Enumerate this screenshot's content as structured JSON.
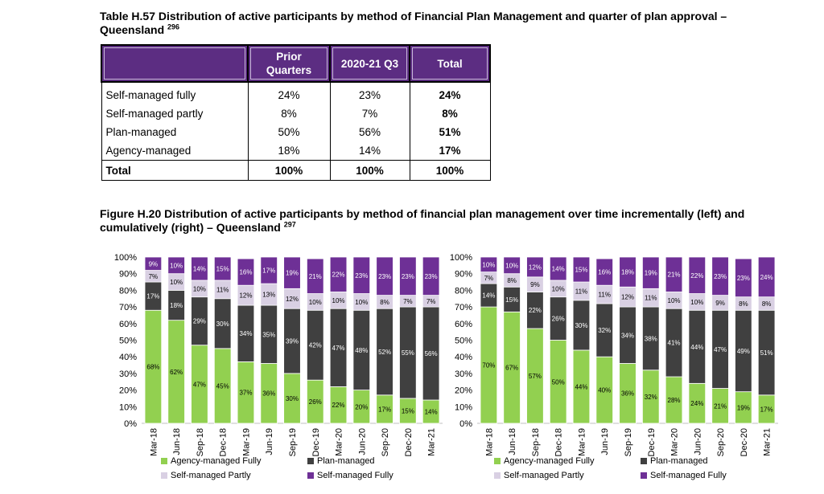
{
  "table": {
    "title": "Table H.57 Distribution of active participants by method of Financial Plan Management and quarter of plan approval – Queensland",
    "title_ref": "296",
    "columns": [
      "",
      "Prior Quarters",
      "2020-21 Q3",
      "Total"
    ],
    "rows": [
      [
        "Self-managed fully",
        "24%",
        "23%",
        "24%"
      ],
      [
        "Self-managed partly",
        "8%",
        "7%",
        "8%"
      ],
      [
        "Plan-managed",
        "50%",
        "56%",
        "51%"
      ],
      [
        "Agency-managed",
        "18%",
        "14%",
        "17%"
      ]
    ],
    "total_row": [
      "Total",
      "100%",
      "100%",
      "100%"
    ]
  },
  "figure": {
    "title": "Figure H.20 Distribution of active participants by method of financial plan management over time incrementally (left) and cumulatively (right) – Queensland",
    "title_ref": "297"
  },
  "colors": {
    "agency": "#92d050",
    "plan": "#404040",
    "partly": "#d9d0e3",
    "fully": "#6e3096",
    "header": "#5c2d82"
  },
  "chart_data": [
    {
      "type": "bar",
      "stacked": true,
      "categories": [
        "Mar-18",
        "Jun-18",
        "Sep-18",
        "Dec-18",
        "Mar-19",
        "Jun-19",
        "Sep-19",
        "Dec-19",
        "Mar-20",
        "Jun-20",
        "Sep-20",
        "Dec-20",
        "Mar-21"
      ],
      "ylim": [
        0,
        100
      ],
      "yticks": [
        "0%",
        "10%",
        "20%",
        "30%",
        "40%",
        "50%",
        "60%",
        "70%",
        "80%",
        "90%",
        "100%"
      ],
      "series": [
        {
          "name": "Agency-managed Fully",
          "values": [
            68,
            62,
            47,
            45,
            37,
            36,
            30,
            26,
            22,
            20,
            17,
            15,
            14
          ]
        },
        {
          "name": "Plan-managed",
          "values": [
            17,
            18,
            29,
            30,
            34,
            35,
            39,
            42,
            47,
            48,
            52,
            55,
            56
          ]
        },
        {
          "name": "Self-managed Partly",
          "values": [
            7,
            10,
            10,
            11,
            12,
            13,
            12,
            10,
            10,
            10,
            8,
            7,
            7
          ]
        },
        {
          "name": "Self-managed Fully",
          "values": [
            9,
            10,
            14,
            15,
            16,
            17,
            19,
            21,
            22,
            23,
            23,
            23,
            23
          ]
        }
      ],
      "legend": "bottom"
    },
    {
      "type": "bar",
      "stacked": true,
      "categories": [
        "Mar-18",
        "Jun-18",
        "Sep-18",
        "Dec-18",
        "Mar-19",
        "Jun-19",
        "Sep-19",
        "Dec-19",
        "Mar-20",
        "Jun-20",
        "Sep-20",
        "Dec-20",
        "Mar-21"
      ],
      "ylim": [
        0,
        100
      ],
      "yticks": [
        "0%",
        "10%",
        "20%",
        "30%",
        "40%",
        "50%",
        "60%",
        "70%",
        "80%",
        "90%",
        "100%"
      ],
      "series": [
        {
          "name": "Agency-managed Fully",
          "values": [
            70,
            67,
            57,
            50,
            44,
            40,
            36,
            32,
            28,
            24,
            21,
            19,
            17
          ]
        },
        {
          "name": "Plan-managed",
          "values": [
            14,
            15,
            22,
            26,
            30,
            32,
            34,
            38,
            41,
            44,
            47,
            49,
            51
          ]
        },
        {
          "name": "Self-managed Partly",
          "values": [
            7,
            8,
            9,
            10,
            11,
            11,
            12,
            11,
            10,
            10,
            9,
            8,
            8
          ]
        },
        {
          "name": "Self-managed Fully",
          "values": [
            10,
            10,
            12,
            14,
            15,
            16,
            18,
            19,
            21,
            22,
            23,
            23,
            24
          ]
        }
      ],
      "legend": "bottom"
    }
  ]
}
